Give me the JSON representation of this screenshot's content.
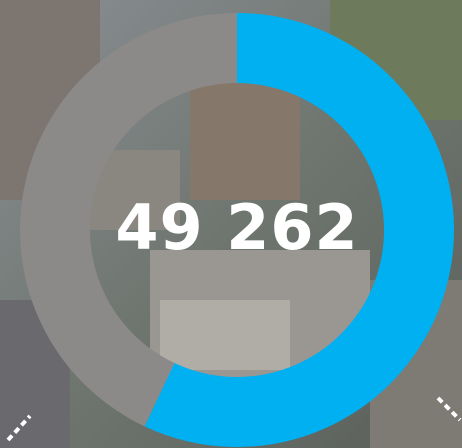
{
  "chart_data": {
    "type": "donut",
    "center_label": "49 262",
    "values": [
      57,
      43
    ],
    "colors": [
      "#00b0f0",
      "#8c8a88"
    ]
  }
}
